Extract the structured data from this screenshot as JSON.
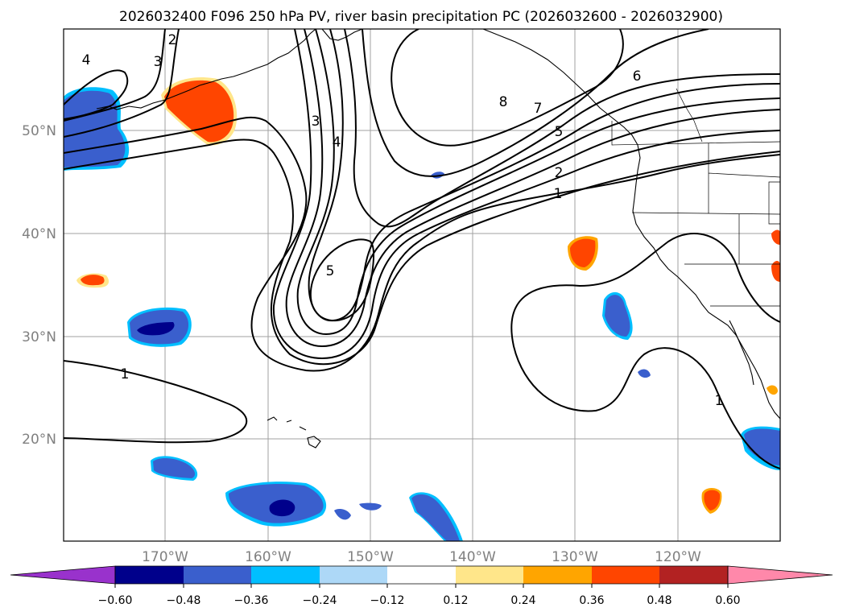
{
  "title": "2026032400 F096 250 hPa PV, river basin precipitation PC (2026032600 - 2026032900)",
  "map": {
    "lat_labels": [
      "50°N",
      "40°N",
      "30°N",
      "20°N"
    ],
    "lon_labels": [
      "170°W",
      "160°W",
      "150°W",
      "140°W",
      "130°W",
      "120°W"
    ],
    "contour_labels": [
      "1",
      "1",
      "1",
      "2",
      "2",
      "3",
      "3",
      "4",
      "4",
      "5",
      "5",
      "6",
      "7",
      "8"
    ]
  },
  "colorbar": {
    "tick_labels": [
      "−0.60",
      "−0.48",
      "−0.36",
      "−0.24",
      "−0.12",
      "0.12",
      "0.24",
      "0.36",
      "0.48",
      "0.60"
    ],
    "colors": [
      "#9932cc",
      "#00008b",
      "#3a5fcd",
      "#00bfff",
      "#add8f7",
      "#ffffff",
      "#ffe68a",
      "#ffa500",
      "#ff4500",
      "#b22222",
      "#ff88aa"
    ]
  }
}
